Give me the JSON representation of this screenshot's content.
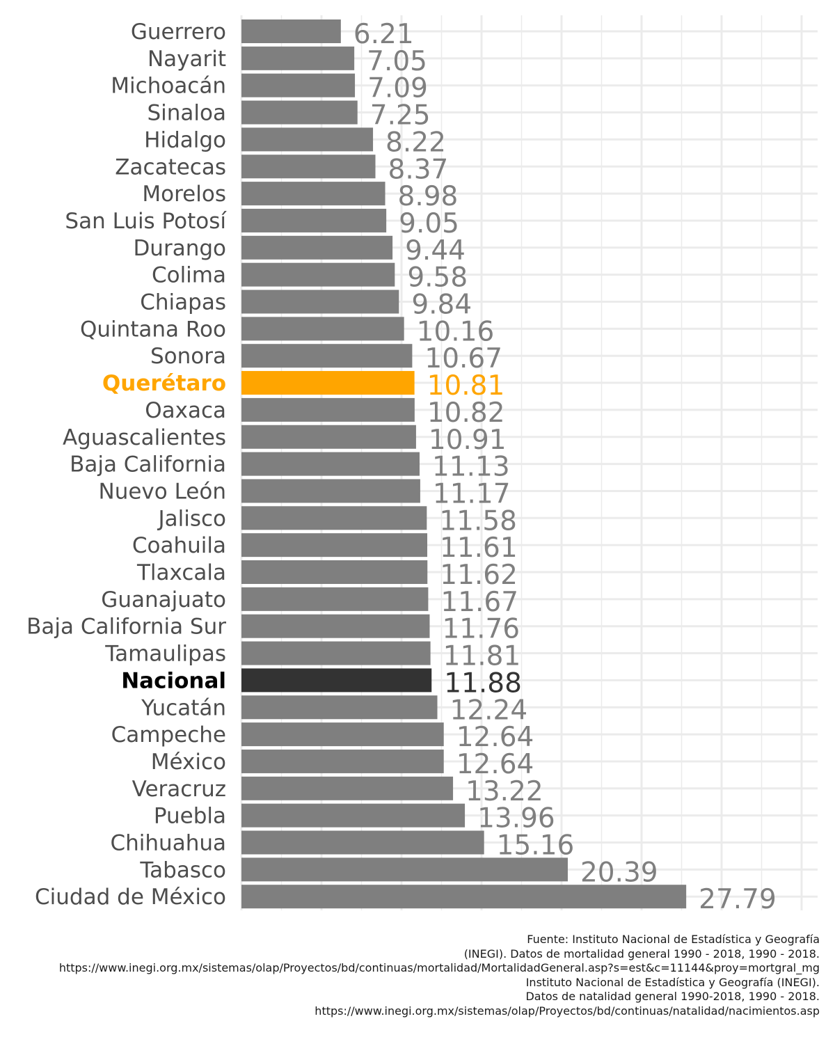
{
  "chart_data": {
    "type": "bar",
    "orientation": "horizontal",
    "categories": [
      "Guerrero",
      "Nayarit",
      "Michoacán",
      "Sinaloa",
      "Hidalgo",
      "Zacatecas",
      "Morelos",
      "San Luis Potosí",
      "Durango",
      "Colima",
      "Chiapas",
      "Quintana Roo",
      "Sonora",
      "Querétaro",
      "Oaxaca",
      "Aguascalientes",
      "Baja California",
      "Nuevo León",
      "Jalisco",
      "Coahuila",
      "Tlaxcala",
      "Guanajuato",
      "Baja California Sur",
      "Tamaulipas",
      "Nacional",
      "Yucatán",
      "Campeche",
      "México",
      "Veracruz",
      "Puebla",
      "Chihuahua",
      "Tabasco",
      "Ciudad de México"
    ],
    "values": [
      6.21,
      7.05,
      7.09,
      7.25,
      8.22,
      8.37,
      8.98,
      9.05,
      9.44,
      9.58,
      9.84,
      10.16,
      10.67,
      10.81,
      10.82,
      10.91,
      11.13,
      11.17,
      11.58,
      11.61,
      11.62,
      11.67,
      11.76,
      11.81,
      11.88,
      12.24,
      12.64,
      12.64,
      13.22,
      13.96,
      15.16,
      20.39,
      27.79
    ],
    "value_labels": [
      "6.21",
      "7.05",
      "7.09",
      "7.25",
      "8.22",
      "8.37",
      "8.98",
      "9.05",
      "9.44",
      "9.58",
      "9.84",
      "10.16",
      "10.67",
      "10.81",
      "10.82",
      "10.91",
      "11.13",
      "11.17",
      "11.58",
      "11.61",
      "11.62",
      "11.67",
      "11.76",
      "11.81",
      "11.88",
      "12.24",
      "12.64",
      "12.64",
      "13.22",
      "13.96",
      "15.16",
      "20.39",
      "27.79"
    ],
    "highlights": {
      "Querétaro": "#FFA500",
      "Nacional": "#333333"
    },
    "default_bar_color": "#7F7F7F",
    "default_label_color": "#7F7F7F",
    "grid": true,
    "xlim": [
      0,
      36
    ]
  },
  "caption": {
    "lines": [
      "Fuente: Instituto Nacional de Estadística y Geografía",
      "(INEGI). Datos de mortalidad general 1990 - 2018, 1990 - 2018.",
      "https://www.inegi.org.mx/sistemas/olap/Proyectos/bd/continuas/mortalidad/MortalidadGeneral.asp?s=est&c=11144&proy=mortgral_mg",
      "Instituto Nacional de Estadística y Geografía (INEGI).",
      "Datos de natalidad general 1990-2018, 1990 - 2018.",
      "https://www.inegi.org.mx/sistemas/olap/Proyectos/bd/continuas/natalidad/nacimientos.asp"
    ]
  }
}
